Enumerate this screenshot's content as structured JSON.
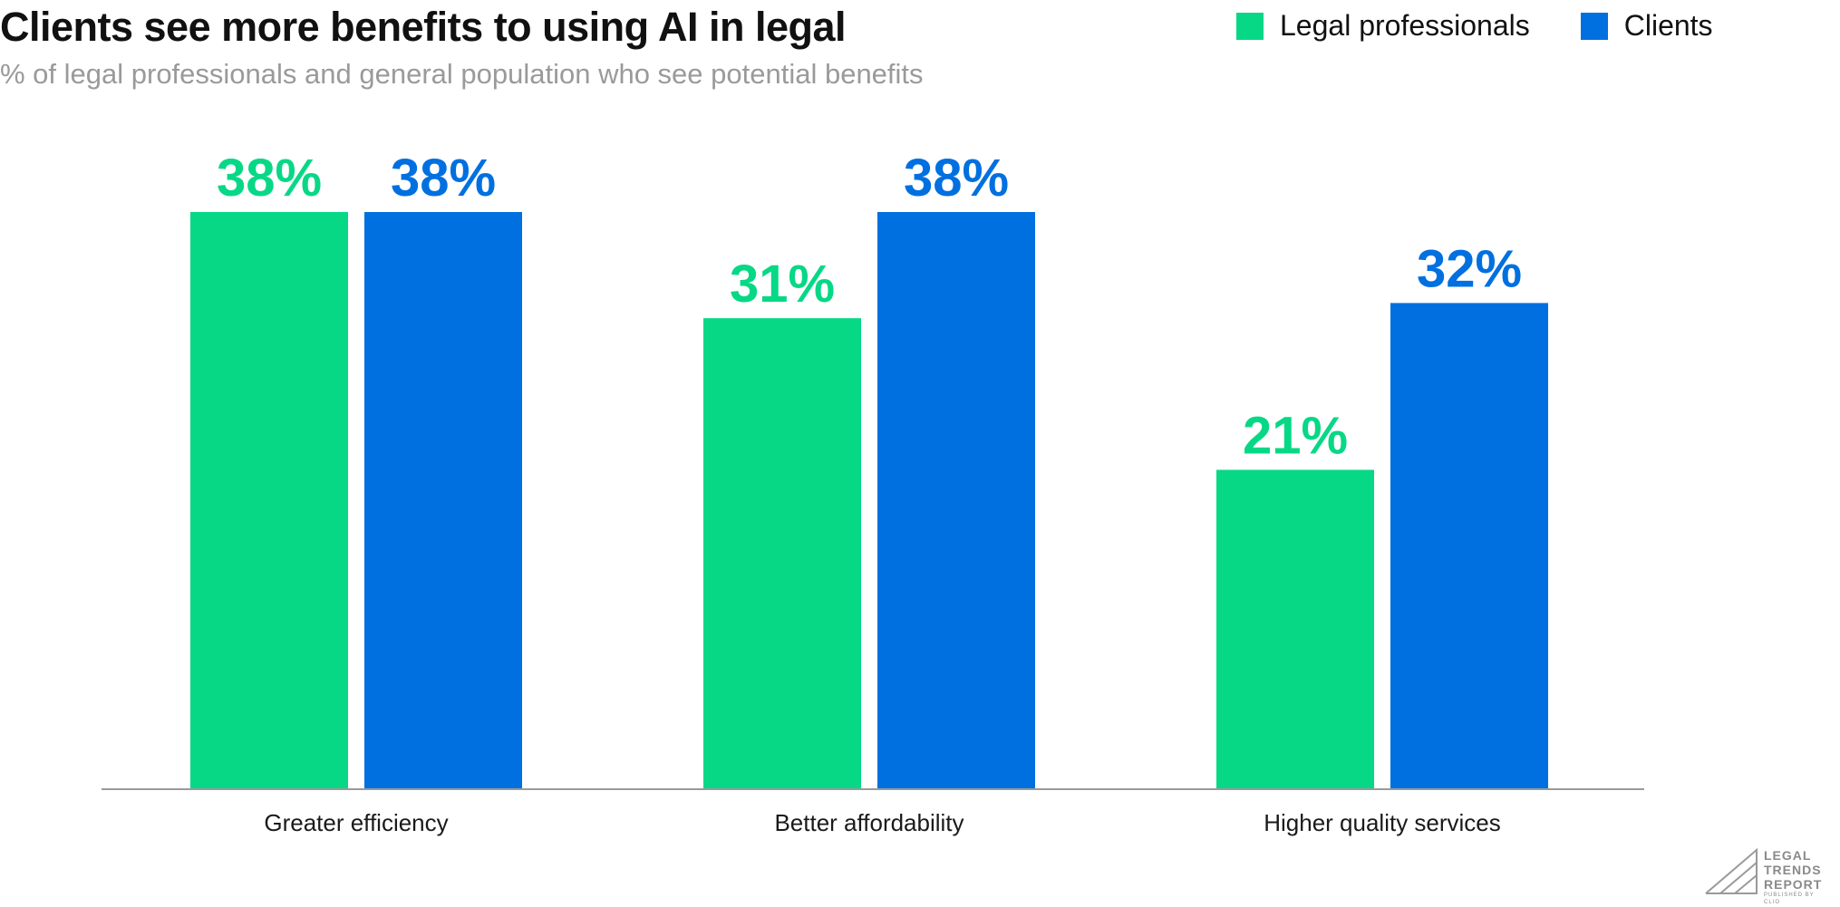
{
  "chart_data": {
    "type": "bar",
    "title": "Clients see more benefits to using AI in legal",
    "subtitle": "% of legal professionals and general population who see potential benefits",
    "categories": [
      "Greater efficiency",
      "Better affordability",
      "Higher quality services"
    ],
    "series": [
      {
        "name": "Legal professionals",
        "values": [
          38,
          31,
          21
        ],
        "labels": [
          "38%",
          "31%",
          "21%"
        ],
        "color": "#07d886"
      },
      {
        "name": "Clients",
        "values": [
          38,
          38,
          32
        ],
        "labels": [
          "38%",
          "38%",
          "32%"
        ],
        "color": "#0070e0"
      }
    ],
    "ylim": [
      0,
      38
    ],
    "grid": false,
    "legend": "top-right",
    "axis_color": "#9a9a9a"
  },
  "logo": {
    "lines": [
      "LEGAL",
      "TRENDS",
      "REPORT"
    ],
    "byline": "PUBLISHED BY CLIO"
  }
}
